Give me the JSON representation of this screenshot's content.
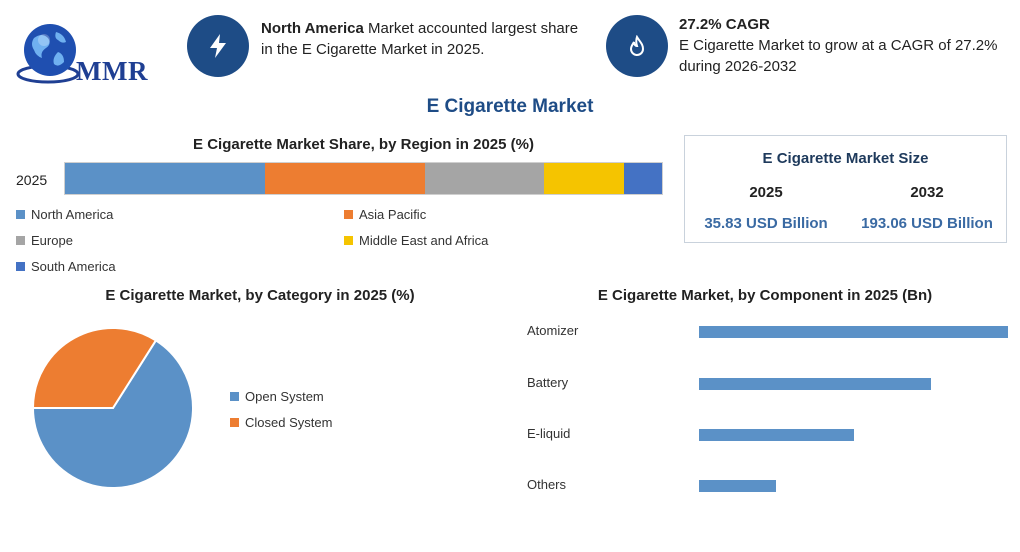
{
  "logo": {
    "text": "MMR"
  },
  "kpis": [
    {
      "icon": "lightning-icon",
      "bold": "North America",
      "text": " Market accounted largest share in the E Cigarette Market in 2025."
    },
    {
      "icon": "flame-icon",
      "bold": "27.2% CAGR",
      "text": "E Cigarette Market to grow at a CAGR of 27.2% during 2026-2032"
    }
  ],
  "main_title": "E Cigarette Market",
  "market_size": {
    "title": "E Cigarette Market Size",
    "years": [
      "2025",
      "2032"
    ],
    "values": [
      "35.83 USD Billion",
      "193.06 USD Billion"
    ]
  },
  "colors": {
    "accent": "#1e4c86",
    "blue": "#5b91c7",
    "orange": "#ed7d31",
    "gray": "#a5a5a5",
    "yellow": "#f5c400",
    "darkblue": "#4472c4"
  },
  "chart_data": [
    {
      "type": "bar",
      "orientation": "horizontal-stacked",
      "title": "E Cigarette Market Share, by Region in 2025 (%)",
      "categories": [
        "2025"
      ],
      "series": [
        {
          "name": "North America",
          "values": [
            33.5
          ],
          "color": "#5b91c7"
        },
        {
          "name": "Asia Pacific",
          "values": [
            26.8
          ],
          "color": "#ed7d31"
        },
        {
          "name": "Europe",
          "values": [
            20
          ],
          "color": "#a5a5a5"
        },
        {
          "name": "Middle East and Africa",
          "values": [
            13.4
          ],
          "color": "#f5c400"
        },
        {
          "name": "South America",
          "values": [
            6.3
          ],
          "color": "#4472c4"
        }
      ],
      "legend": "bottom"
    },
    {
      "type": "pie",
      "title": "E Cigarette Market, by Category in 2025 (%)",
      "categories": [
        "Open System",
        "Closed System"
      ],
      "values": [
        66,
        34
      ],
      "colors": [
        "#5b91c7",
        "#ed7d31"
      ],
      "legend": "right"
    },
    {
      "type": "bar",
      "orientation": "horizontal",
      "title": "E Cigarette Market, by Component in 2025 (Bn)",
      "categories": [
        "Atomizer",
        "Battery",
        "E-liquid",
        "Others"
      ],
      "values": [
        12,
        9,
        6,
        3
      ],
      "xlim": [
        0,
        12
      ],
      "color": "#5b91c7"
    }
  ]
}
